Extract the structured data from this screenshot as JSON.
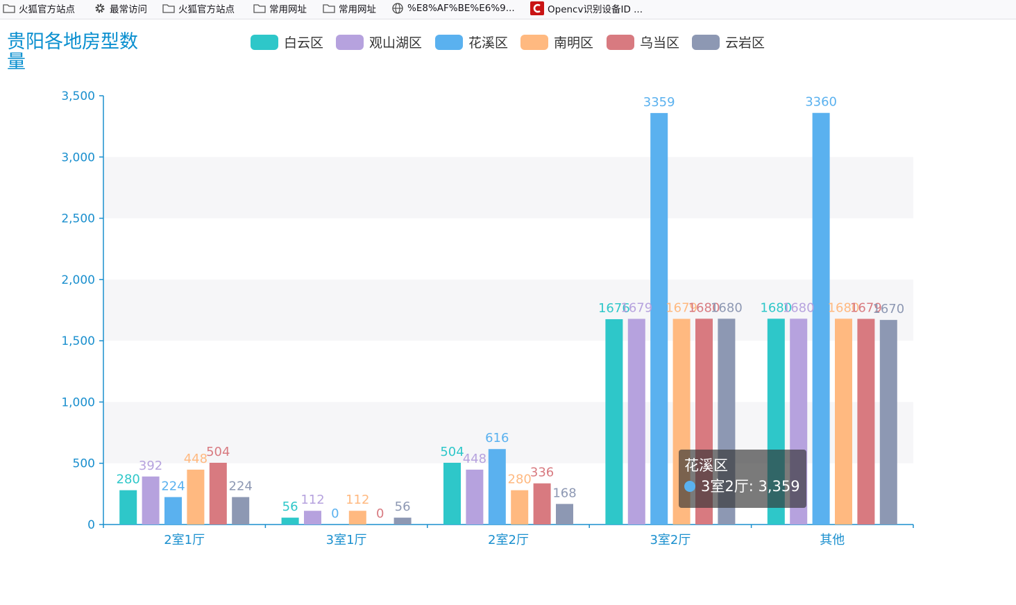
{
  "bookmarks": [
    {
      "label": "火狐官方站点",
      "icon": "folder-icon"
    },
    {
      "label": "最常访问",
      "icon": "gear-icon"
    },
    {
      "label": "火狐官方站点",
      "icon": "folder-icon"
    },
    {
      "label": "常用网址",
      "icon": "folder-icon"
    },
    {
      "label": "常用网址",
      "icon": "folder-icon"
    },
    {
      "label": "%E8%AF%BE%E6%9...",
      "icon": "globe-icon"
    },
    {
      "label": "Opencv识别设备ID ...",
      "icon": "csdn-logo-icon"
    }
  ],
  "colors": {
    "axis": "#1a8fce",
    "title": "#0a8fcf",
    "split_area": "#f6f6f8",
    "csdn": "#c91414"
  },
  "tooltip": {
    "series": "花溪区",
    "category": "3室2厅",
    "value_text": "3,359",
    "color": "#5ab1ef"
  },
  "chart_data": {
    "type": "bar",
    "title": "贵阳各地房型数量",
    "xlabel": "",
    "ylabel": "",
    "ylim": [
      0,
      3500
    ],
    "yticks": [
      0,
      500,
      1000,
      1500,
      2000,
      2500,
      3000,
      3500
    ],
    "ytick_labels": [
      "0",
      "500",
      "1,000",
      "1,500",
      "2,000",
      "2,500",
      "3,000",
      "3,500"
    ],
    "legend_position": "top",
    "categories": [
      "2室1厅",
      "3室1厅",
      "2室2厅",
      "3室2厅",
      "其他"
    ],
    "series": [
      {
        "name": "白云区",
        "color": "#2ec7c9",
        "values": [
          280,
          56,
          504,
          1676,
          1680
        ]
      },
      {
        "name": "观山湖区",
        "color": "#b6a2de",
        "values": [
          392,
          112,
          448,
          1679,
          1680
        ]
      },
      {
        "name": "花溪区",
        "color": "#5ab1ef",
        "values": [
          224,
          0,
          616,
          3359,
          3360
        ]
      },
      {
        "name": "南明区",
        "color": "#ffb980",
        "values": [
          448,
          112,
          280,
          1679,
          1680
        ]
      },
      {
        "name": "乌当区",
        "color": "#d87a80",
        "values": [
          504,
          0,
          336,
          1680,
          1679
        ]
      },
      {
        "name": "云岩区",
        "color": "#8d98b3",
        "values": [
          224,
          56,
          168,
          1680,
          1670
        ]
      }
    ]
  }
}
